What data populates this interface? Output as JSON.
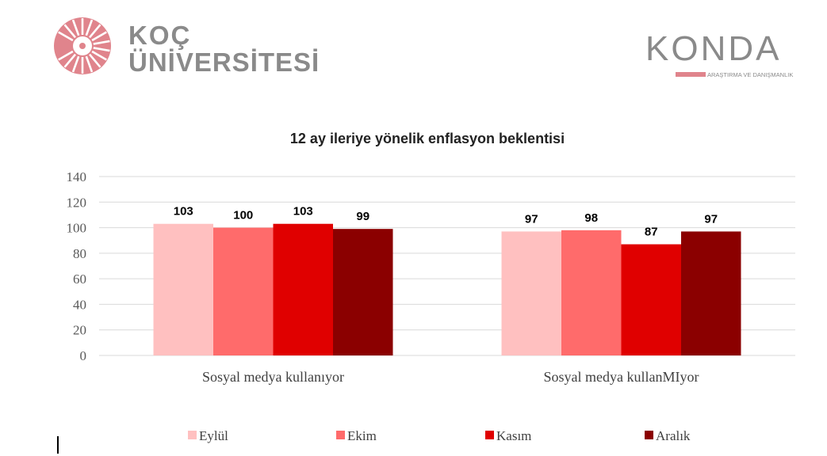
{
  "logos": {
    "koc_line1": "KOÇ",
    "koc_line2": "ÜNİVERSİTESİ",
    "konda_name": "KONDA",
    "konda_sub": "ARAŞTIRMA VE DANIŞMANLIK"
  },
  "colors": {
    "brand_red": "#e0848c",
    "brand_gray": "#8a8a8a",
    "series": [
      "#ffc0c0",
      "#ff6b6b",
      "#e00000",
      "#8b0000"
    ]
  },
  "chart_data": {
    "type": "bar",
    "title": "12 ay ileriye yönelik enflasyon beklentisi",
    "categories": [
      "Sosyal medya kullanıyor",
      "Sosyal medya kullanMIyor"
    ],
    "series": [
      {
        "name": "Eylül",
        "values": [
          103,
          97
        ]
      },
      {
        "name": "Ekim",
        "values": [
          100,
          98
        ]
      },
      {
        "name": "Kasım",
        "values": [
          103,
          87
        ]
      },
      {
        "name": "Aralık",
        "values": [
          99,
          97
        ]
      }
    ],
    "ylim": [
      0,
      140
    ],
    "yticks": [
      0,
      20,
      40,
      60,
      80,
      100,
      120,
      140
    ],
    "xlabel": "",
    "ylabel": "",
    "grid": true,
    "legend": "bottom"
  }
}
